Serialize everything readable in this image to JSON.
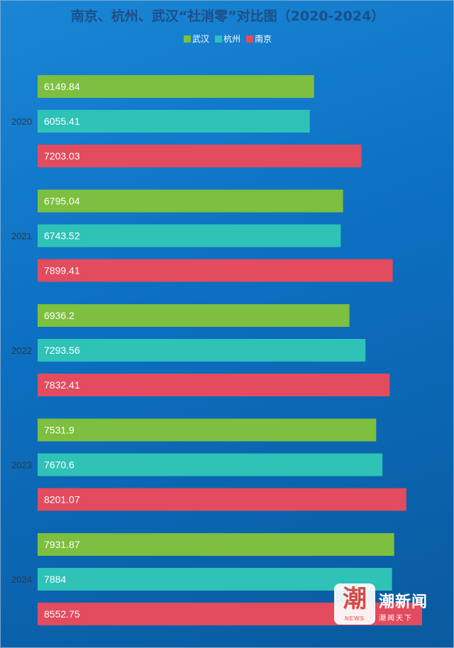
{
  "chart_data": {
    "type": "bar",
    "orientation": "horizontal",
    "title": "南京、杭州、武汉“社消零”对比图（2020-2024）",
    "categories": [
      "2020",
      "2021",
      "2022",
      "2023",
      "2024"
    ],
    "series": [
      {
        "name": "武汉",
        "color": "#7dbf3e",
        "values": [
          6149.84,
          6795.04,
          6936.2,
          7531.9,
          7931.87
        ],
        "labels": [
          "6149.84",
          "6795.04",
          "6936.2",
          "7531.9",
          "7931.87"
        ]
      },
      {
        "name": "杭州",
        "color": "#2fc2b7",
        "values": [
          6055.41,
          6743.52,
          7293.56,
          7670.6,
          7884
        ],
        "labels": [
          "6055.41",
          "6743.52",
          "7293.56",
          "7670.6",
          "7884"
        ]
      },
      {
        "name": "南京",
        "color": "#e34b5e",
        "values": [
          7203.03,
          7899.41,
          7832.41,
          8201.07,
          8552.75
        ],
        "labels": [
          "7203.03",
          "7899.41",
          "7832.41",
          "8201.07",
          "8552.75"
        ]
      }
    ],
    "xlim": [
      0,
      8552.75
    ],
    "legend_position": "top-center",
    "grid": false,
    "xlabel": "",
    "ylabel": ""
  },
  "watermark": {
    "logo_text": "潮",
    "logo_sub": "NEWS",
    "brand": "潮新闻",
    "brand_sub": "潮闻天下"
  }
}
